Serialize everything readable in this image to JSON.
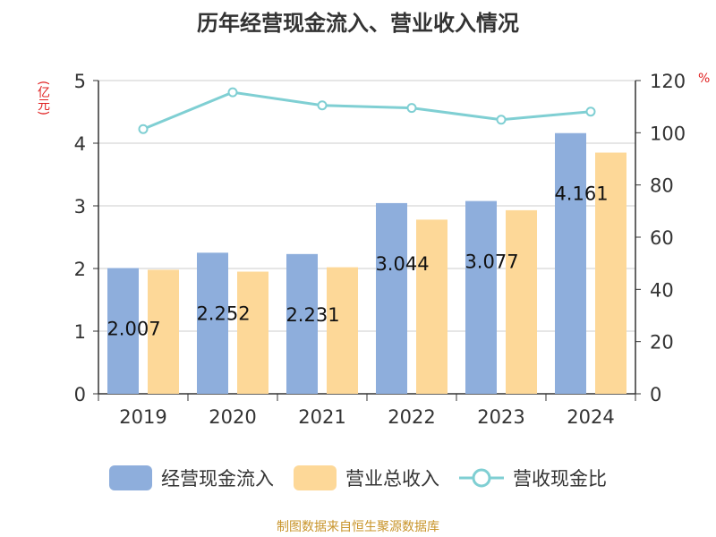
{
  "chart_data": {
    "type": "bar",
    "title": "历年经营现金流入、营业收入情况",
    "y_left_unit": "(亿元)",
    "y_right_unit": "%",
    "categories": [
      "2019",
      "2020",
      "2021",
      "2022",
      "2023",
      "2024"
    ],
    "y_left_range": [
      0,
      5
    ],
    "y_left_ticks": [
      "0",
      "1",
      "2",
      "3",
      "4",
      "5"
    ],
    "y_right_range": [
      0,
      120
    ],
    "y_right_ticks": [
      "0",
      "20",
      "40",
      "60",
      "80",
      "100",
      "120"
    ],
    "grid": true,
    "legend_position": "bottom",
    "series": [
      {
        "name": "经营现金流入",
        "type": "bar",
        "axis": "left",
        "color": "#8eaedc",
        "values": [
          2.007,
          2.252,
          2.231,
          3.044,
          3.077,
          4.161
        ],
        "labels": [
          "2.007",
          "2.252",
          "2.231",
          "3.044",
          "3.077",
          "4.161"
        ]
      },
      {
        "name": "营业总收入",
        "type": "bar",
        "axis": "left",
        "color": "#fdd898",
        "values": [
          1.98,
          1.95,
          2.02,
          2.78,
          2.93,
          3.85
        ]
      },
      {
        "name": "营收现金比",
        "type": "line",
        "axis": "right",
        "color": "#7fcfd3",
        "values": [
          101.4,
          115.5,
          110.5,
          109.5,
          105.0,
          108.1
        ]
      }
    ],
    "source": "制图数据来自恒生聚源数据库"
  }
}
